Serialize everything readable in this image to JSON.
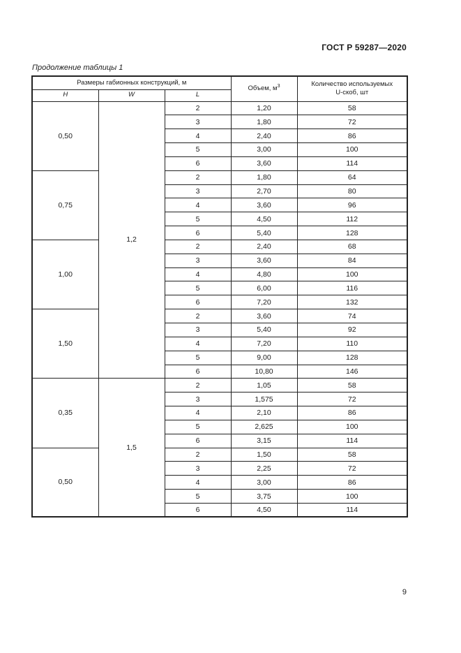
{
  "page": {
    "doc_number": "ГОСТ Р 59287—2020",
    "table_caption": "Продолжение таблицы 1",
    "page_number": "9"
  },
  "colors": {
    "background": "#ffffff",
    "text": "#1c1c1c",
    "border": "#222222"
  },
  "table": {
    "group_header": "Размеры габионных конструкций, м",
    "columns": {
      "h": "H",
      "w": "W",
      "l": "L"
    },
    "volume_label": "Объем, м",
    "volume_superscript": "3",
    "uclips_label_line1": "Количество используемых",
    "uclips_label_line2": "U-скоб, шт",
    "sections": [
      {
        "w": "1,2",
        "blocks": [
          {
            "h": "0,50",
            "rows": [
              [
                "2",
                "1,20",
                "58"
              ],
              [
                "3",
                "1,80",
                "72"
              ],
              [
                "4",
                "2,40",
                "86"
              ],
              [
                "5",
                "3,00",
                "100"
              ],
              [
                "6",
                "3,60",
                "114"
              ]
            ]
          },
          {
            "h": "0,75",
            "rows": [
              [
                "2",
                "1,80",
                "64"
              ],
              [
                "3",
                "2,70",
                "80"
              ],
              [
                "4",
                "3,60",
                "96"
              ],
              [
                "5",
                "4,50",
                "112"
              ],
              [
                "6",
                "5,40",
                "128"
              ]
            ]
          },
          {
            "h": "1,00",
            "rows": [
              [
                "2",
                "2,40",
                "68"
              ],
              [
                "3",
                "3,60",
                "84"
              ],
              [
                "4",
                "4,80",
                "100"
              ],
              [
                "5",
                "6,00",
                "116"
              ],
              [
                "6",
                "7,20",
                "132"
              ]
            ]
          },
          {
            "h": "1,50",
            "rows": [
              [
                "2",
                "3,60",
                "74"
              ],
              [
                "3",
                "5,40",
                "92"
              ],
              [
                "4",
                "7,20",
                "110"
              ],
              [
                "5",
                "9,00",
                "128"
              ],
              [
                "6",
                "10,80",
                "146"
              ]
            ]
          }
        ]
      },
      {
        "w": "1,5",
        "blocks": [
          {
            "h": "0,35",
            "rows": [
              [
                "2",
                "1,05",
                "58"
              ],
              [
                "3",
                "1,575",
                "72"
              ],
              [
                "4",
                "2,10",
                "86"
              ],
              [
                "5",
                "2,625",
                "100"
              ],
              [
                "6",
                "3,15",
                "114"
              ]
            ]
          },
          {
            "h": "0,50",
            "rows": [
              [
                "2",
                "1,50",
                "58"
              ],
              [
                "3",
                "2,25",
                "72"
              ],
              [
                "4",
                "3,00",
                "86"
              ],
              [
                "5",
                "3,75",
                "100"
              ],
              [
                "6",
                "4,50",
                "114"
              ]
            ]
          }
        ]
      }
    ]
  }
}
